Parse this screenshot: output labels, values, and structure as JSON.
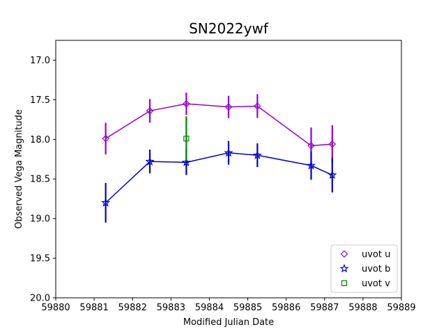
{
  "chart_data": {
    "type": "scatter",
    "title": "SN2022ywf",
    "xlabel": "Modified Julian Date",
    "ylabel": "Observed Vega Magnitude",
    "xlim": [
      59880,
      59889
    ],
    "ylim": [
      20.0,
      16.75
    ],
    "y_inverted": true,
    "x_ticks": [
      59880,
      59881,
      59882,
      59883,
      59884,
      59885,
      59886,
      59887,
      59888,
      59889
    ],
    "y_ticks": [
      17.0,
      17.5,
      18.0,
      18.5,
      19.0,
      19.5,
      20.0
    ],
    "legend_position": "lower-right",
    "series": [
      {
        "name": "uvot u",
        "color": "#9400d3",
        "marker": "diamond",
        "connected": true,
        "x": [
          59881.3,
          59882.45,
          59883.4,
          59884.5,
          59885.25,
          59886.65,
          59887.2
        ],
        "y": [
          17.99,
          17.64,
          17.55,
          17.59,
          17.58,
          18.08,
          18.06
        ],
        "yerr": [
          0.2,
          0.15,
          0.14,
          0.14,
          0.15,
          0.23,
          0.24
        ]
      },
      {
        "name": "uvot b",
        "color": "#0000cd",
        "marker": "star",
        "connected": true,
        "x": [
          59881.3,
          59882.45,
          59883.4,
          59884.5,
          59885.25,
          59886.65,
          59887.2
        ],
        "y": [
          18.8,
          18.28,
          18.29,
          18.17,
          18.2,
          18.33,
          18.45
        ],
        "yerr": [
          0.25,
          0.15,
          0.16,
          0.15,
          0.15,
          0.18,
          0.22
        ]
      },
      {
        "name": "uvot v",
        "color": "#008000",
        "marker": "square",
        "connected": false,
        "x": [
          59883.4
        ],
        "y": [
          17.99
        ],
        "yerr": [
          0.28
        ]
      }
    ]
  }
}
